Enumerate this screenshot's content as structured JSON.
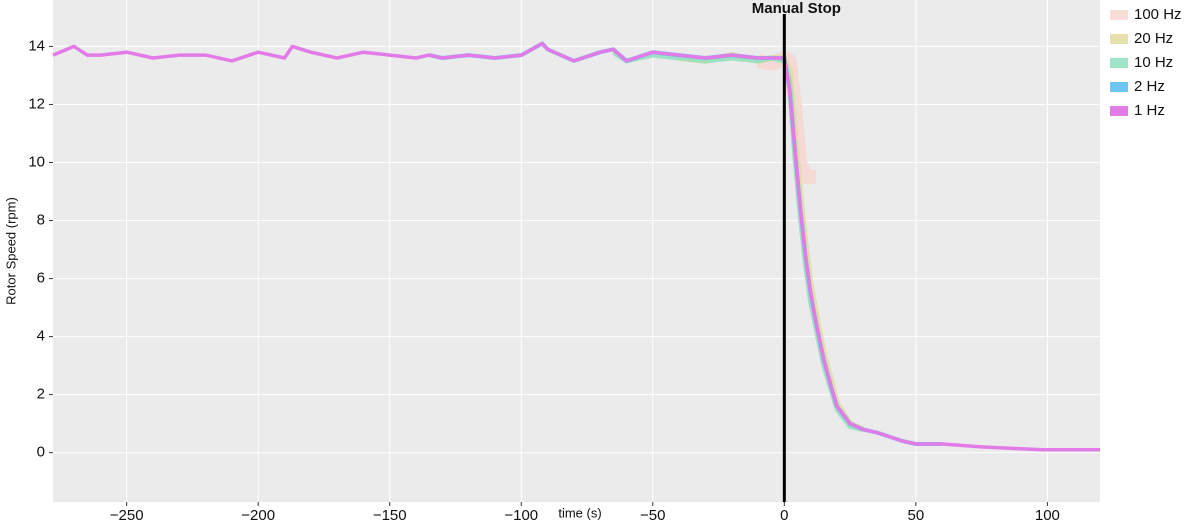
{
  "chart_data": {
    "type": "line",
    "xlabel": "time (s)",
    "ylabel": "Rotor Speed (rpm)",
    "annotation": {
      "text": "Manual Stop",
      "x": 0
    },
    "x": [
      -278,
      -270,
      -265,
      -260,
      -250,
      -240,
      -230,
      -220,
      -210,
      -200,
      -190,
      -187,
      -180,
      -170,
      -160,
      -150,
      -140,
      -135,
      -130,
      -120,
      -110,
      -100,
      -92,
      -90,
      -80,
      -70,
      -65,
      -60,
      -50,
      -40,
      -30,
      -20,
      -10,
      -5,
      0,
      2,
      4,
      6,
      8,
      10,
      12,
      15,
      18,
      20,
      25,
      30,
      35,
      45,
      50,
      60,
      75,
      98,
      120
    ],
    "series": [
      {
        "name": "100 Hz",
        "color": "#f8d5d0",
        "values": [
          null,
          null,
          null,
          null,
          null,
          null,
          null,
          null,
          null,
          null,
          null,
          null,
          null,
          null,
          null,
          null,
          null,
          null,
          null,
          null,
          null,
          null,
          null,
          null,
          null,
          null,
          null,
          null,
          null,
          null,
          null,
          null,
          13.5,
          13.4,
          13.6,
          13.5,
          12.0,
          10.0,
          9.5,
          9.5,
          9.5,
          null,
          null,
          null,
          null,
          null,
          null,
          null,
          null,
          null,
          null,
          null,
          null
        ]
      },
      {
        "name": "20 Hz",
        "color": "#e0dba0",
        "values": [
          null,
          null,
          null,
          null,
          null,
          null,
          null,
          null,
          null,
          null,
          null,
          null,
          null,
          null,
          null,
          null,
          null,
          null,
          null,
          null,
          null,
          null,
          null,
          null,
          null,
          null,
          null,
          null,
          null,
          13.6,
          13.5,
          13.7,
          13.5,
          13.6,
          13.6,
          13.2,
          11.0,
          9.0,
          7.2,
          5.8,
          4.8,
          3.4,
          2.4,
          1.7,
          1.0,
          0.8,
          null,
          null,
          null,
          null,
          null,
          null,
          null
        ]
      },
      {
        "name": "10 Hz",
        "color": "#8fe0c0",
        "values": [
          null,
          null,
          null,
          null,
          null,
          null,
          null,
          null,
          null,
          null,
          null,
          null,
          null,
          null,
          null,
          null,
          null,
          null,
          null,
          null,
          null,
          null,
          null,
          null,
          null,
          null,
          13.8,
          13.5,
          13.7,
          13.6,
          13.5,
          13.6,
          13.5,
          13.6,
          13.5,
          12.8,
          10.2,
          8.2,
          6.5,
          5.2,
          4.3,
          3.0,
          2.1,
          1.5,
          0.9,
          0.8,
          null,
          null,
          null,
          null,
          null,
          null,
          null
        ]
      },
      {
        "name": "2 Hz",
        "color": "#5bc0ee",
        "values": [
          null,
          null,
          null,
          null,
          null,
          null,
          null,
          null,
          null,
          null,
          null,
          null,
          null,
          null,
          null,
          null,
          null,
          13.7,
          13.6,
          13.7,
          13.6,
          13.7,
          14.1,
          13.9,
          13.5,
          13.8,
          13.9,
          13.5,
          13.8,
          13.7,
          13.6,
          13.7,
          13.6,
          13.6,
          13.6,
          12.5,
          10.5,
          8.5,
          6.8,
          5.5,
          4.5,
          3.2,
          2.2,
          1.6,
          1.0,
          0.8,
          0.7,
          0.4,
          0.3,
          0.3,
          null,
          null,
          null
        ]
      },
      {
        "name": "1 Hz",
        "color": "#e27be8",
        "values": [
          13.7,
          14.0,
          13.7,
          13.7,
          13.8,
          13.6,
          13.7,
          13.7,
          13.5,
          13.8,
          13.6,
          14.0,
          13.8,
          13.6,
          13.8,
          13.7,
          13.6,
          13.7,
          13.6,
          13.7,
          13.6,
          13.7,
          14.1,
          13.9,
          13.5,
          13.8,
          13.9,
          13.5,
          13.8,
          13.7,
          13.6,
          13.7,
          13.6,
          13.6,
          13.6,
          12.5,
          10.5,
          8.5,
          6.8,
          5.5,
          4.5,
          3.2,
          2.2,
          1.6,
          1.0,
          0.8,
          0.7,
          0.4,
          0.3,
          0.3,
          0.2,
          0.1,
          0.1
        ]
      }
    ],
    "xlim": [
      -278,
      120
    ],
    "xticks": [
      {
        "value": -250,
        "label": "−250"
      },
      {
        "value": -200,
        "label": "−200"
      },
      {
        "value": -150,
        "label": "−150"
      },
      {
        "value": -100,
        "label": "−100"
      },
      {
        "value": -50,
        "label": "−50"
      },
      0,
      50,
      100
    ],
    "ylim": [
      -1.7,
      15.6
    ],
    "yticks": [
      0,
      2,
      4,
      6,
      8,
      10,
      12,
      14
    ],
    "grid": true
  }
}
